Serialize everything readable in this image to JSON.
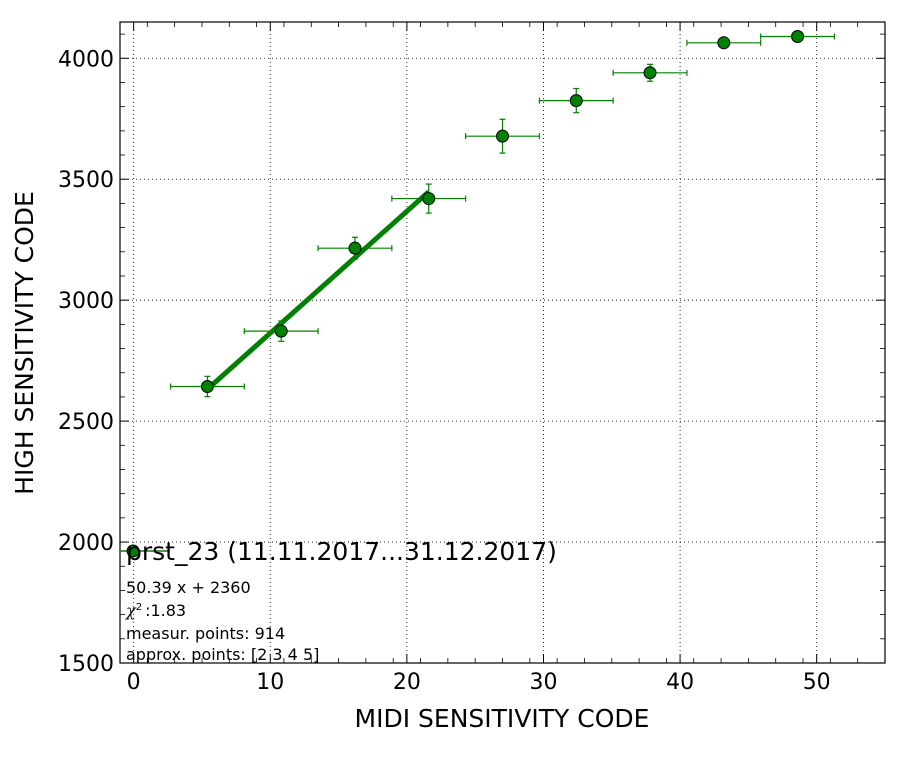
{
  "chart_data": {
    "type": "scatter",
    "xlabel": "MIDI SENSITIVITY CODE",
    "ylabel": "HIGH SENSITIVITY CODE",
    "xlim": [
      -1,
      55
    ],
    "ylim": [
      1500,
      4150
    ],
    "xticks": [
      0,
      10,
      20,
      30,
      40,
      50
    ],
    "yticks": [
      1500,
      2000,
      2500,
      3000,
      3500,
      4000
    ],
    "grid": true,
    "color": "#008000",
    "points": [
      {
        "x": 5.4,
        "y": 2643,
        "xerr": 2.7,
        "yerr": 42
      },
      {
        "x": 10.8,
        "y": 2872,
        "xerr": 2.7,
        "yerr": 42
      },
      {
        "x": 16.2,
        "y": 3215,
        "xerr": 2.7,
        "yerr": 45
      },
      {
        "x": 21.6,
        "y": 3420,
        "xerr": 2.7,
        "yerr": 60
      },
      {
        "x": 27.0,
        "y": 3678,
        "xerr": 2.7,
        "yerr": 70
      },
      {
        "x": 32.4,
        "y": 3825,
        "xerr": 2.7,
        "yerr": 50
      },
      {
        "x": 37.8,
        "y": 3940,
        "xerr": 2.7,
        "yerr": 35
      },
      {
        "x": 43.2,
        "y": 4064,
        "xerr": 2.7,
        "yerr": 18
      },
      {
        "x": 48.6,
        "y": 4090,
        "xerr": 2.7,
        "yerr": 12
      }
    ],
    "fit": {
      "slope": 50.39,
      "intercept": 2360,
      "x_range": [
        5.4,
        21.6
      ]
    },
    "legend": {
      "title": "prst_23 (11.11.2017...31.12.2017)",
      "equation": "50.39 x + 2360",
      "chi_symbol": "χ",
      "chi_sup": "2",
      "chi_value": ":1.83",
      "measur_points": "measur. points: 914",
      "approx_points": "approx. points: [2 3 4 5]",
      "placement": "lower-left"
    }
  }
}
